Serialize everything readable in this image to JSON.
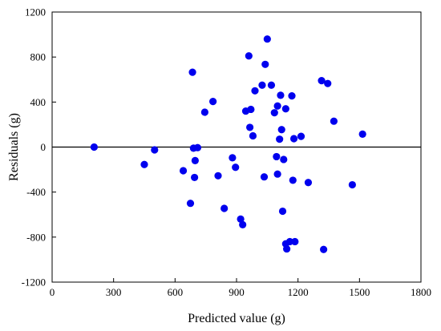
{
  "chart_data": {
    "type": "scatter",
    "xlabel": "Predicted value (g)",
    "ylabel": "Residuals (g)",
    "xlim": [
      0,
      1800
    ],
    "ylim": [
      -1200,
      1200
    ],
    "xticks": [
      "0",
      "300",
      "600",
      "900",
      "1200",
      "1500",
      "1800"
    ],
    "yticks": [
      "1200",
      "800",
      "400",
      "0",
      "-400",
      "-800",
      "-1200"
    ],
    "reference_line_y": 0,
    "grid": false,
    "marker_color": "#0000ee",
    "points": [
      {
        "x": 205,
        "y": 0
      },
      {
        "x": 450,
        "y": -155
      },
      {
        "x": 500,
        "y": -25
      },
      {
        "x": 640,
        "y": -210
      },
      {
        "x": 675,
        "y": -500
      },
      {
        "x": 685,
        "y": 665
      },
      {
        "x": 690,
        "y": -10
      },
      {
        "x": 695,
        "y": -270
      },
      {
        "x": 698,
        "y": -120
      },
      {
        "x": 710,
        "y": -5
      },
      {
        "x": 745,
        "y": 310
      },
      {
        "x": 785,
        "y": 405
      },
      {
        "x": 810,
        "y": -255
      },
      {
        "x": 840,
        "y": -545
      },
      {
        "x": 880,
        "y": -95
      },
      {
        "x": 895,
        "y": -180
      },
      {
        "x": 920,
        "y": -640
      },
      {
        "x": 930,
        "y": -690
      },
      {
        "x": 945,
        "y": 320
      },
      {
        "x": 960,
        "y": 810
      },
      {
        "x": 965,
        "y": 175
      },
      {
        "x": 970,
        "y": 335
      },
      {
        "x": 980,
        "y": 100
      },
      {
        "x": 990,
        "y": 500
      },
      {
        "x": 1025,
        "y": 550
      },
      {
        "x": 1035,
        "y": -265
      },
      {
        "x": 1040,
        "y": 735
      },
      {
        "x": 1050,
        "y": 960
      },
      {
        "x": 1070,
        "y": 550
      },
      {
        "x": 1085,
        "y": 305
      },
      {
        "x": 1095,
        "y": -85
      },
      {
        "x": 1100,
        "y": -240
      },
      {
        "x": 1100,
        "y": 365
      },
      {
        "x": 1110,
        "y": 70
      },
      {
        "x": 1115,
        "y": 460
      },
      {
        "x": 1120,
        "y": 155
      },
      {
        "x": 1125,
        "y": -570
      },
      {
        "x": 1130,
        "y": -110
      },
      {
        "x": 1140,
        "y": 340
      },
      {
        "x": 1140,
        "y": -860
      },
      {
        "x": 1145,
        "y": -905
      },
      {
        "x": 1160,
        "y": -840
      },
      {
        "x": 1170,
        "y": 455
      },
      {
        "x": 1175,
        "y": -295
      },
      {
        "x": 1180,
        "y": 75
      },
      {
        "x": 1185,
        "y": -840
      },
      {
        "x": 1215,
        "y": 95
      },
      {
        "x": 1250,
        "y": -315
      },
      {
        "x": 1315,
        "y": 590
      },
      {
        "x": 1325,
        "y": -910
      },
      {
        "x": 1345,
        "y": 565
      },
      {
        "x": 1375,
        "y": 230
      },
      {
        "x": 1465,
        "y": -335
      },
      {
        "x": 1515,
        "y": 115
      }
    ]
  }
}
